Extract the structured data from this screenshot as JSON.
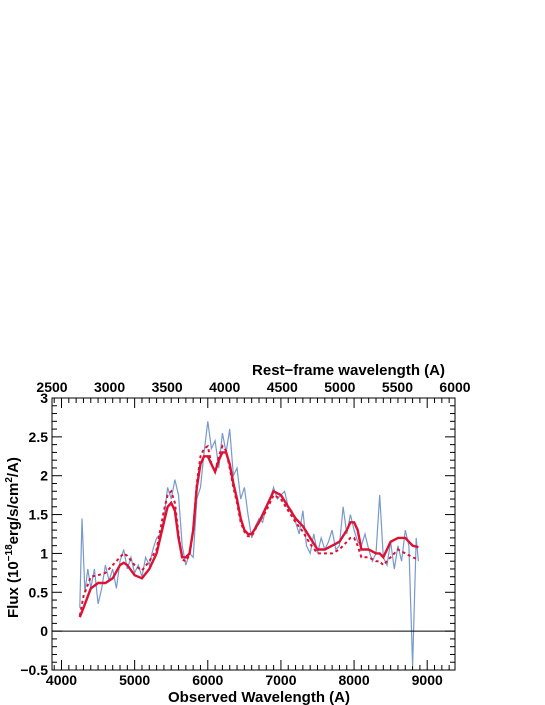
{
  "chart_data": {
    "type": "line",
    "title": "",
    "xlabel": "Observed Wavelength (A)",
    "x2label": "Rest−frame wavelength (A)",
    "ylabel_parts": [
      "Flux (10",
      "−18",
      "erg/s/cm",
      "2",
      "/A)"
    ],
    "xlim": [
      3870,
      9380
    ],
    "x2lim": [
      2500,
      6000
    ],
    "ylim": [
      -0.5,
      3
    ],
    "x_ticks": [
      {
        "v": 4000,
        "label": "4000"
      },
      {
        "v": 5000,
        "label": "5000"
      },
      {
        "v": 6000,
        "label": "6000"
      },
      {
        "v": 7000,
        "label": "7000"
      },
      {
        "v": 8000,
        "label": "8000"
      },
      {
        "v": 9000,
        "label": "9000"
      }
    ],
    "x2_ticks": [
      {
        "v": 2500,
        "label": "2500"
      },
      {
        "v": 3000,
        "label": "3000"
      },
      {
        "v": 3500,
        "label": "3500"
      },
      {
        "v": 4000,
        "label": "4000"
      },
      {
        "v": 4500,
        "label": "4500"
      },
      {
        "v": 5000,
        "label": "5000"
      },
      {
        "v": 5500,
        "label": "5500"
      },
      {
        "v": 6000,
        "label": "6000"
      }
    ],
    "y_ticks": [
      {
        "v": -0.5,
        "label": "−0.5"
      },
      {
        "v": 0,
        "label": "0"
      },
      {
        "v": 0.5,
        "label": "0.5"
      },
      {
        "v": 1,
        "label": "1"
      },
      {
        "v": 1.5,
        "label": "1.5"
      },
      {
        "v": 2,
        "label": "2"
      },
      {
        "v": 2.5,
        "label": "2.5"
      },
      {
        "v": 3,
        "label": "3"
      }
    ],
    "zero_line": 0,
    "grid": false,
    "series": [
      {
        "style": "observed-spectrum",
        "color": "#7799cc",
        "x": [
          4250,
          4280,
          4320,
          4360,
          4400,
          4450,
          4500,
          4550,
          4600,
          4650,
          4700,
          4750,
          4800,
          4850,
          4900,
          4950,
          5000,
          5050,
          5100,
          5150,
          5200,
          5250,
          5300,
          5350,
          5400,
          5450,
          5500,
          5550,
          5600,
          5650,
          5700,
          5750,
          5800,
          5850,
          5900,
          5950,
          6000,
          6050,
          6100,
          6150,
          6200,
          6250,
          6300,
          6350,
          6400,
          6450,
          6500,
          6550,
          6600,
          6650,
          6700,
          6750,
          6800,
          6850,
          6900,
          6950,
          7000,
          7050,
          7100,
          7150,
          7200,
          7250,
          7300,
          7350,
          7400,
          7450,
          7500,
          7550,
          7600,
          7650,
          7700,
          7750,
          7800,
          7850,
          7900,
          7950,
          8000,
          8050,
          8100,
          8150,
          8200,
          8250,
          8300,
          8350,
          8400,
          8450,
          8500,
          8550,
          8600,
          8650,
          8700,
          8750,
          8800,
          8850,
          8880
        ],
        "values": [
          0.3,
          1.45,
          0.5,
          0.8,
          0.55,
          0.8,
          0.35,
          0.55,
          0.85,
          0.65,
          0.8,
          0.55,
          0.9,
          1.05,
          0.8,
          0.95,
          0.75,
          0.85,
          0.7,
          0.95,
          0.85,
          1.05,
          1.2,
          1.25,
          1.45,
          1.85,
          1.7,
          1.95,
          1.75,
          1.1,
          0.85,
          1.0,
          0.95,
          1.7,
          1.85,
          2.3,
          2.7,
          2.35,
          2.45,
          2.1,
          2.55,
          2.3,
          2.6,
          2.0,
          2.1,
          1.7,
          1.85,
          1.5,
          1.2,
          1.35,
          1.45,
          1.4,
          1.6,
          1.7,
          1.85,
          1.7,
          1.75,
          1.8,
          1.6,
          1.55,
          1.4,
          1.25,
          1.55,
          1.1,
          1.0,
          1.25,
          1.0,
          1.2,
          1.05,
          1.15,
          1.3,
          1.05,
          1.1,
          1.6,
          1.25,
          1.5,
          1.3,
          1.15,
          1.1,
          1.25,
          1.05,
          0.9,
          1.0,
          1.75,
          0.95,
          0.85,
          1.15,
          0.8,
          1.1,
          0.9,
          1.3,
          1.1,
          -0.45,
          1.2,
          0.9
        ]
      },
      {
        "style": "model-solid",
        "color": "#dd1133",
        "x": [
          4250,
          4300,
          4400,
          4500,
          4600,
          4700,
          4800,
          4850,
          4900,
          5000,
          5100,
          5200,
          5300,
          5400,
          5450,
          5500,
          5550,
          5600,
          5650,
          5700,
          5750,
          5800,
          5850,
          5900,
          5950,
          6000,
          6050,
          6100,
          6150,
          6200,
          6250,
          6300,
          6350,
          6400,
          6450,
          6500,
          6550,
          6600,
          6700,
          6800,
          6900,
          7000,
          7100,
          7200,
          7300,
          7400,
          7500,
          7600,
          7700,
          7800,
          7900,
          7950,
          8000,
          8050,
          8100,
          8200,
          8300,
          8350,
          8400,
          8500,
          8600,
          8700,
          8800,
          8880
        ],
        "values": [
          0.18,
          0.3,
          0.55,
          0.62,
          0.62,
          0.68,
          0.85,
          0.88,
          0.85,
          0.72,
          0.68,
          0.8,
          1.0,
          1.4,
          1.6,
          1.65,
          1.55,
          1.2,
          0.95,
          0.95,
          1.0,
          1.3,
          1.85,
          2.15,
          2.25,
          2.25,
          2.15,
          2.05,
          2.2,
          2.3,
          2.3,
          2.15,
          1.9,
          1.7,
          1.45,
          1.3,
          1.25,
          1.25,
          1.4,
          1.6,
          1.8,
          1.75,
          1.6,
          1.45,
          1.35,
          1.2,
          1.05,
          1.05,
          1.1,
          1.15,
          1.3,
          1.4,
          1.4,
          1.3,
          1.05,
          1.05,
          1.0,
          1.0,
          0.95,
          1.15,
          1.2,
          1.2,
          1.1,
          1.08
        ]
      },
      {
        "style": "model-dashed",
        "color": "#dd1133",
        "x": [
          4250,
          4300,
          4400,
          4500,
          4600,
          4700,
          4800,
          4850,
          4900,
          5000,
          5100,
          5200,
          5300,
          5400,
          5450,
          5500,
          5550,
          5600,
          5650,
          5700,
          5750,
          5800,
          5850,
          5900,
          5950,
          6000,
          6050,
          6100,
          6150,
          6200,
          6250,
          6300,
          6350,
          6400,
          6450,
          6500,
          6550,
          6600,
          6700,
          6800,
          6900,
          7000,
          7100,
          7200,
          7300,
          7400,
          7500,
          7600,
          7700,
          7800,
          7900,
          7950,
          8000,
          8050,
          8100,
          8200,
          8300,
          8350,
          8400,
          8500,
          8600,
          8700,
          8800,
          8880
        ],
        "values": [
          0.2,
          0.45,
          0.7,
          0.72,
          0.75,
          0.85,
          0.95,
          1.0,
          0.97,
          0.85,
          0.78,
          0.9,
          1.05,
          1.55,
          1.75,
          1.8,
          1.65,
          1.25,
          0.92,
          0.9,
          0.98,
          1.3,
          1.9,
          2.25,
          2.35,
          2.38,
          2.15,
          2.05,
          2.25,
          2.38,
          2.32,
          2.1,
          1.85,
          1.65,
          1.4,
          1.28,
          1.22,
          1.22,
          1.4,
          1.55,
          1.75,
          1.7,
          1.55,
          1.4,
          1.28,
          1.12,
          1.0,
          1.0,
          1.0,
          1.05,
          1.15,
          1.2,
          1.2,
          1.1,
          0.95,
          0.95,
          0.9,
          0.9,
          0.85,
          0.95,
          1.05,
          1.0,
          0.95,
          0.92
        ]
      }
    ]
  }
}
